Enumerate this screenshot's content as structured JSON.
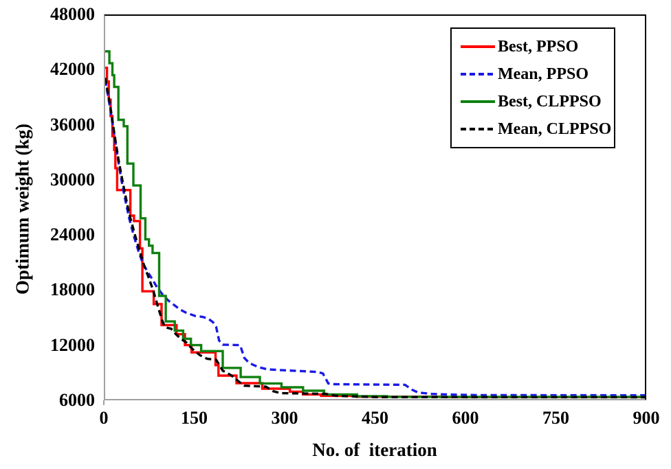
{
  "chart_data": {
    "type": "line",
    "title": "",
    "xlabel": "No. of  iteration",
    "ylabel": "Optimum weight (kg)",
    "xlim": [
      0,
      900
    ],
    "ylim": [
      6000,
      48000
    ],
    "x_ticks": [
      0,
      150,
      300,
      450,
      600,
      750,
      900
    ],
    "y_ticks": [
      48000,
      42000,
      36000,
      30000,
      24000,
      18000,
      12000,
      6000
    ],
    "grid": false,
    "legend_position": "top-right",
    "axis_color": "#a0a0a0",
    "frame_color": "#000000",
    "series": [
      {
        "name": "Best, PPSO",
        "color": "#fe0000",
        "style": "solid",
        "render": "step",
        "points": [
          [
            0,
            42300
          ],
          [
            3,
            40800
          ],
          [
            6,
            38800
          ],
          [
            9,
            37000
          ],
          [
            12,
            34800
          ],
          [
            15,
            33300
          ],
          [
            17,
            31300
          ],
          [
            20,
            28900
          ],
          [
            42,
            26100
          ],
          [
            48,
            25500
          ],
          [
            58,
            22500
          ],
          [
            62,
            17800
          ],
          [
            81,
            16400
          ],
          [
            94,
            14100
          ],
          [
            119,
            13100
          ],
          [
            133,
            11900
          ],
          [
            144,
            11100
          ],
          [
            184,
            9700
          ],
          [
            189,
            8560
          ],
          [
            219,
            7730
          ],
          [
            262,
            7130
          ],
          [
            308,
            6800
          ],
          [
            330,
            6500
          ],
          [
            360,
            6350
          ],
          [
            420,
            6250
          ],
          [
            560,
            6200
          ],
          [
            900,
            6200
          ]
        ]
      },
      {
        "name": "Mean, PPSO",
        "color": "#1a1ae8",
        "style": "dashed",
        "render": "linear",
        "points": [
          [
            0,
            41000
          ],
          [
            8,
            38000
          ],
          [
            15,
            35000
          ],
          [
            22,
            32000
          ],
          [
            27,
            30000
          ],
          [
            32,
            28300
          ],
          [
            40,
            25800
          ],
          [
            48,
            23800
          ],
          [
            55,
            22300
          ],
          [
            62,
            21000
          ],
          [
            70,
            20000
          ],
          [
            78,
            19200
          ],
          [
            85,
            18400
          ],
          [
            95,
            17500
          ],
          [
            105,
            16800
          ],
          [
            115,
            16300
          ],
          [
            125,
            15800
          ],
          [
            135,
            15450
          ],
          [
            150,
            15100
          ],
          [
            162,
            15000
          ],
          [
            172,
            14800
          ],
          [
            180,
            14400
          ],
          [
            185,
            13900
          ],
          [
            190,
            12400
          ],
          [
            196,
            11950
          ],
          [
            225,
            11900
          ],
          [
            232,
            10500
          ],
          [
            240,
            9950
          ],
          [
            255,
            9500
          ],
          [
            270,
            9250
          ],
          [
            295,
            9150
          ],
          [
            330,
            9050
          ],
          [
            355,
            8950
          ],
          [
            363,
            8800
          ],
          [
            372,
            7700
          ],
          [
            380,
            7620
          ],
          [
            500,
            7550
          ],
          [
            512,
            7000
          ],
          [
            522,
            6700
          ],
          [
            545,
            6550
          ],
          [
            575,
            6480
          ],
          [
            620,
            6420
          ],
          [
            900,
            6400
          ]
        ]
      },
      {
        "name": "Best, CLPPSO",
        "color": "#108010",
        "style": "solid",
        "render": "step",
        "points": [
          [
            0,
            44100
          ],
          [
            7,
            42800
          ],
          [
            12,
            41500
          ],
          [
            15,
            40200
          ],
          [
            22,
            36600
          ],
          [
            31,
            35900
          ],
          [
            37,
            31800
          ],
          [
            47,
            29400
          ],
          [
            59,
            25800
          ],
          [
            67,
            23500
          ],
          [
            73,
            22800
          ],
          [
            79,
            22000
          ],
          [
            90,
            17300
          ],
          [
            101,
            14500
          ],
          [
            116,
            13500
          ],
          [
            130,
            12600
          ],
          [
            143,
            11900
          ],
          [
            160,
            11250
          ],
          [
            196,
            9400
          ],
          [
            226,
            8400
          ],
          [
            258,
            7700
          ],
          [
            294,
            7280
          ],
          [
            330,
            6900
          ],
          [
            365,
            6500
          ],
          [
            420,
            6300
          ],
          [
            470,
            6230
          ],
          [
            900,
            6180
          ]
        ]
      },
      {
        "name": "Mean, CLPPSO",
        "color": "#000000",
        "style": "dashed",
        "render": "linear",
        "points": [
          [
            0,
            41200
          ],
          [
            8,
            38300
          ],
          [
            15,
            35200
          ],
          [
            22,
            32300
          ],
          [
            28,
            30200
          ],
          [
            35,
            27900
          ],
          [
            40,
            26300
          ],
          [
            50,
            23900
          ],
          [
            58,
            22100
          ],
          [
            65,
            20600
          ],
          [
            72,
            19400
          ],
          [
            80,
            17900
          ],
          [
            88,
            16100
          ],
          [
            95,
            14600
          ],
          [
            100,
            13850
          ],
          [
            110,
            13700
          ],
          [
            118,
            13100
          ],
          [
            126,
            12600
          ],
          [
            135,
            12200
          ],
          [
            145,
            11500
          ],
          [
            158,
            10800
          ],
          [
            170,
            10400
          ],
          [
            185,
            10300
          ],
          [
            196,
            9100
          ],
          [
            210,
            8600
          ],
          [
            222,
            7950
          ],
          [
            232,
            7450
          ],
          [
            268,
            7350
          ],
          [
            280,
            6850
          ],
          [
            292,
            6640
          ],
          [
            368,
            6560
          ],
          [
            385,
            6350
          ],
          [
            420,
            6260
          ],
          [
            455,
            6200
          ],
          [
            900,
            6190
          ]
        ]
      }
    ]
  }
}
